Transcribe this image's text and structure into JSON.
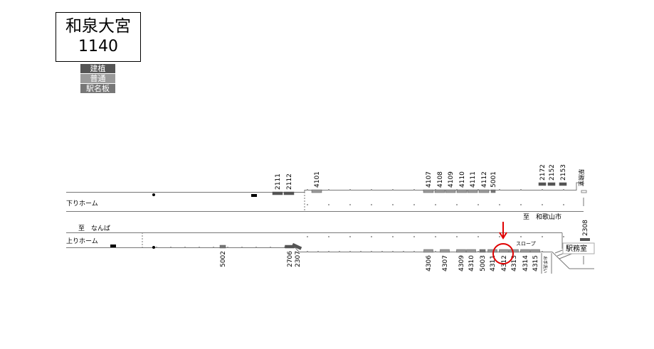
{
  "station": {
    "name": "和泉大宮",
    "code": "1140"
  },
  "legend": [
    {
      "label": "建植",
      "color": "#555555"
    },
    {
      "label": "普通",
      "color": "#9a9a9a"
    },
    {
      "label": "駅名板",
      "color": "#777777"
    }
  ],
  "labels": {
    "down_platform": "下りホーム",
    "up_platform": "上りホーム",
    "to_namba": "至　なんば",
    "to_wakayamashi": "至　和歌山市",
    "slope": "スロープ",
    "station_office": "駅務室",
    "station_office_top": "駅務室",
    "toilet": "お手洗い"
  },
  "highlight": {
    "sign": "4312",
    "color": "#e00000"
  },
  "down_signs": [
    {
      "id": "2111",
      "type": "建植"
    },
    {
      "id": "2112",
      "type": "建植"
    },
    {
      "id": "4101",
      "type": "普通"
    },
    {
      "id": "4107",
      "type": "普通"
    },
    {
      "id": "4108",
      "type": "普通"
    },
    {
      "id": "4109",
      "type": "普通"
    },
    {
      "id": "4110",
      "type": "普通"
    },
    {
      "id": "4111",
      "type": "普通"
    },
    {
      "id": "4112",
      "type": "普通"
    },
    {
      "id": "5001",
      "type": "駅名板"
    },
    {
      "id": "2172",
      "type": "建植"
    },
    {
      "id": "2152",
      "type": "建植"
    },
    {
      "id": "2153",
      "type": "建植"
    }
  ],
  "up_signs": [
    {
      "id": "5002",
      "type": "駅名板"
    },
    {
      "id": "2706",
      "type": "建植"
    },
    {
      "id": "2307",
      "type": "建植"
    },
    {
      "id": "4306",
      "type": "普通"
    },
    {
      "id": "4307",
      "type": "普通"
    },
    {
      "id": "4309",
      "type": "普通"
    },
    {
      "id": "4310",
      "type": "普通"
    },
    {
      "id": "5003",
      "type": "駅名板"
    },
    {
      "id": "4311",
      "type": "普通"
    },
    {
      "id": "4312",
      "type": "普通"
    },
    {
      "id": "4313",
      "type": "普通"
    },
    {
      "id": "4314",
      "type": "普通"
    },
    {
      "id": "4315",
      "type": "普通"
    },
    {
      "id": "2308",
      "type": "建植"
    }
  ]
}
